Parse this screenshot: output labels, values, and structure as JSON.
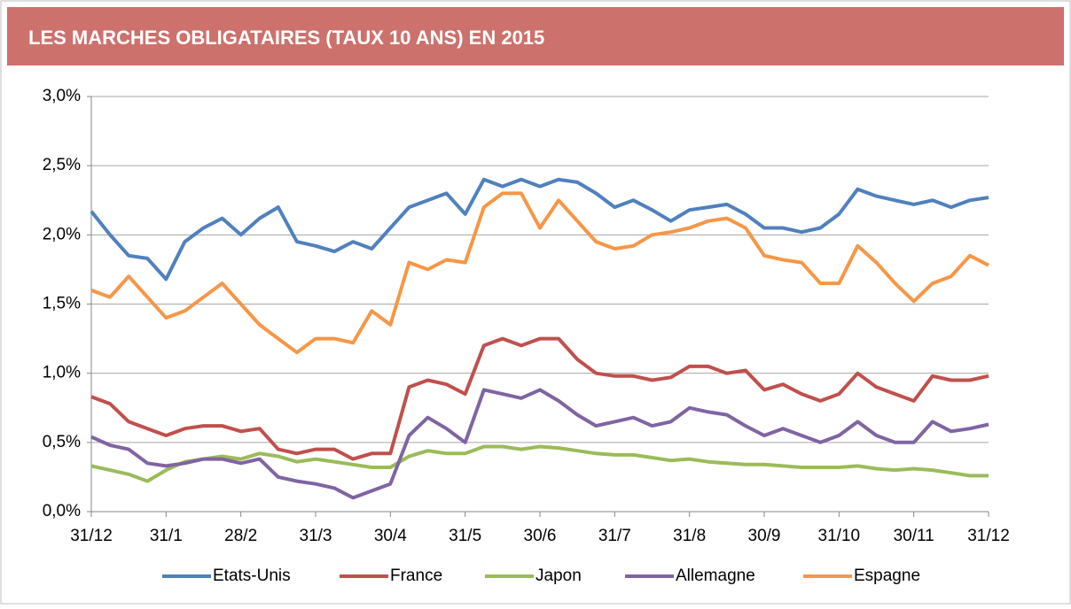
{
  "chart_data": {
    "type": "line",
    "title": "LES MARCHES OBLIGATAIRES (TAUX 10 ANS) EN 2015",
    "categories": [
      "31/12",
      null,
      null,
      null,
      "31/1",
      null,
      null,
      null,
      "28/2",
      null,
      null,
      null,
      "31/3",
      null,
      null,
      null,
      "30/4",
      null,
      null,
      null,
      "31/5",
      null,
      null,
      null,
      "30/6",
      null,
      null,
      null,
      "31/7",
      null,
      null,
      null,
      "31/8",
      null,
      null,
      null,
      "30/9",
      null,
      null,
      null,
      "31/10",
      null,
      null,
      null,
      "30/11",
      null,
      null,
      null,
      "31/12"
    ],
    "series": [
      {
        "name": "Etats-Unis",
        "color": "#4f81bd",
        "values": [
          2.17,
          2.0,
          1.85,
          1.83,
          1.68,
          1.95,
          2.05,
          2.12,
          2.0,
          2.12,
          2.2,
          1.95,
          1.92,
          1.88,
          1.95,
          1.9,
          2.05,
          2.2,
          2.25,
          2.3,
          2.15,
          2.4,
          2.35,
          2.4,
          2.35,
          2.4,
          2.38,
          2.3,
          2.2,
          2.25,
          2.18,
          2.1,
          2.18,
          2.2,
          2.22,
          2.15,
          2.05,
          2.05,
          2.02,
          2.05,
          2.15,
          2.33,
          2.28,
          2.25,
          2.22,
          2.25,
          2.2,
          2.25,
          2.27
        ]
      },
      {
        "name": "France",
        "color": "#c0504d",
        "values": [
          0.83,
          0.78,
          0.65,
          0.6,
          0.55,
          0.6,
          0.62,
          0.62,
          0.58,
          0.6,
          0.45,
          0.42,
          0.45,
          0.45,
          0.38,
          0.42,
          0.42,
          0.9,
          0.95,
          0.92,
          0.85,
          1.2,
          1.25,
          1.2,
          1.25,
          1.25,
          1.1,
          1.0,
          0.98,
          0.98,
          0.95,
          0.97,
          1.05,
          1.05,
          1.0,
          1.02,
          0.88,
          0.92,
          0.85,
          0.8,
          0.85,
          1.0,
          0.9,
          0.85,
          0.8,
          0.98,
          0.95,
          0.95,
          0.98
        ]
      },
      {
        "name": "Japon",
        "color": "#9bbb59",
        "values": [
          0.33,
          0.3,
          0.27,
          0.22,
          0.3,
          0.36,
          0.38,
          0.4,
          0.38,
          0.42,
          0.4,
          0.36,
          0.38,
          0.36,
          0.34,
          0.32,
          0.32,
          0.4,
          0.44,
          0.42,
          0.42,
          0.47,
          0.47,
          0.45,
          0.47,
          0.46,
          0.44,
          0.42,
          0.41,
          0.41,
          0.39,
          0.37,
          0.38,
          0.36,
          0.35,
          0.34,
          0.34,
          0.33,
          0.32,
          0.32,
          0.32,
          0.33,
          0.31,
          0.3,
          0.31,
          0.3,
          0.28,
          0.26,
          0.26
        ]
      },
      {
        "name": "Allemagne",
        "color": "#8064a2",
        "values": [
          0.54,
          0.48,
          0.45,
          0.35,
          0.33,
          0.35,
          0.38,
          0.38,
          0.35,
          0.38,
          0.25,
          0.22,
          0.2,
          0.17,
          0.1,
          0.15,
          0.2,
          0.55,
          0.68,
          0.6,
          0.5,
          0.88,
          0.85,
          0.82,
          0.88,
          0.8,
          0.7,
          0.62,
          0.65,
          0.68,
          0.62,
          0.65,
          0.75,
          0.72,
          0.7,
          0.62,
          0.55,
          0.6,
          0.55,
          0.5,
          0.55,
          0.65,
          0.55,
          0.5,
          0.5,
          0.65,
          0.58,
          0.6,
          0.63
        ]
      },
      {
        "name": "Espagne",
        "color": "#f79646",
        "values": [
          1.6,
          1.55,
          1.7,
          1.55,
          1.4,
          1.45,
          1.55,
          1.65,
          1.5,
          1.35,
          1.25,
          1.15,
          1.25,
          1.25,
          1.22,
          1.45,
          1.35,
          1.8,
          1.75,
          1.82,
          1.8,
          2.2,
          2.3,
          2.3,
          2.05,
          2.25,
          2.1,
          1.95,
          1.9,
          1.92,
          2.0,
          2.02,
          2.05,
          2.1,
          2.12,
          2.05,
          1.85,
          1.82,
          1.8,
          1.65,
          1.65,
          1.92,
          1.8,
          1.65,
          1.52,
          1.65,
          1.7,
          1.85,
          1.78
        ]
      }
    ],
    "ylim": [
      0,
      3
    ],
    "yticks": [
      {
        "value": 0,
        "label": "0,0%"
      },
      {
        "value": 0.5,
        "label": "0,5%"
      },
      {
        "value": 1,
        "label": "1,0%"
      },
      {
        "value": 1.5,
        "label": "1,5%"
      },
      {
        "value": 2,
        "label": "2,0%"
      },
      {
        "value": 2.5,
        "label": "2,5%"
      },
      {
        "value": 3,
        "label": "3,0%"
      }
    ],
    "grid": true,
    "legend": "bottom"
  }
}
